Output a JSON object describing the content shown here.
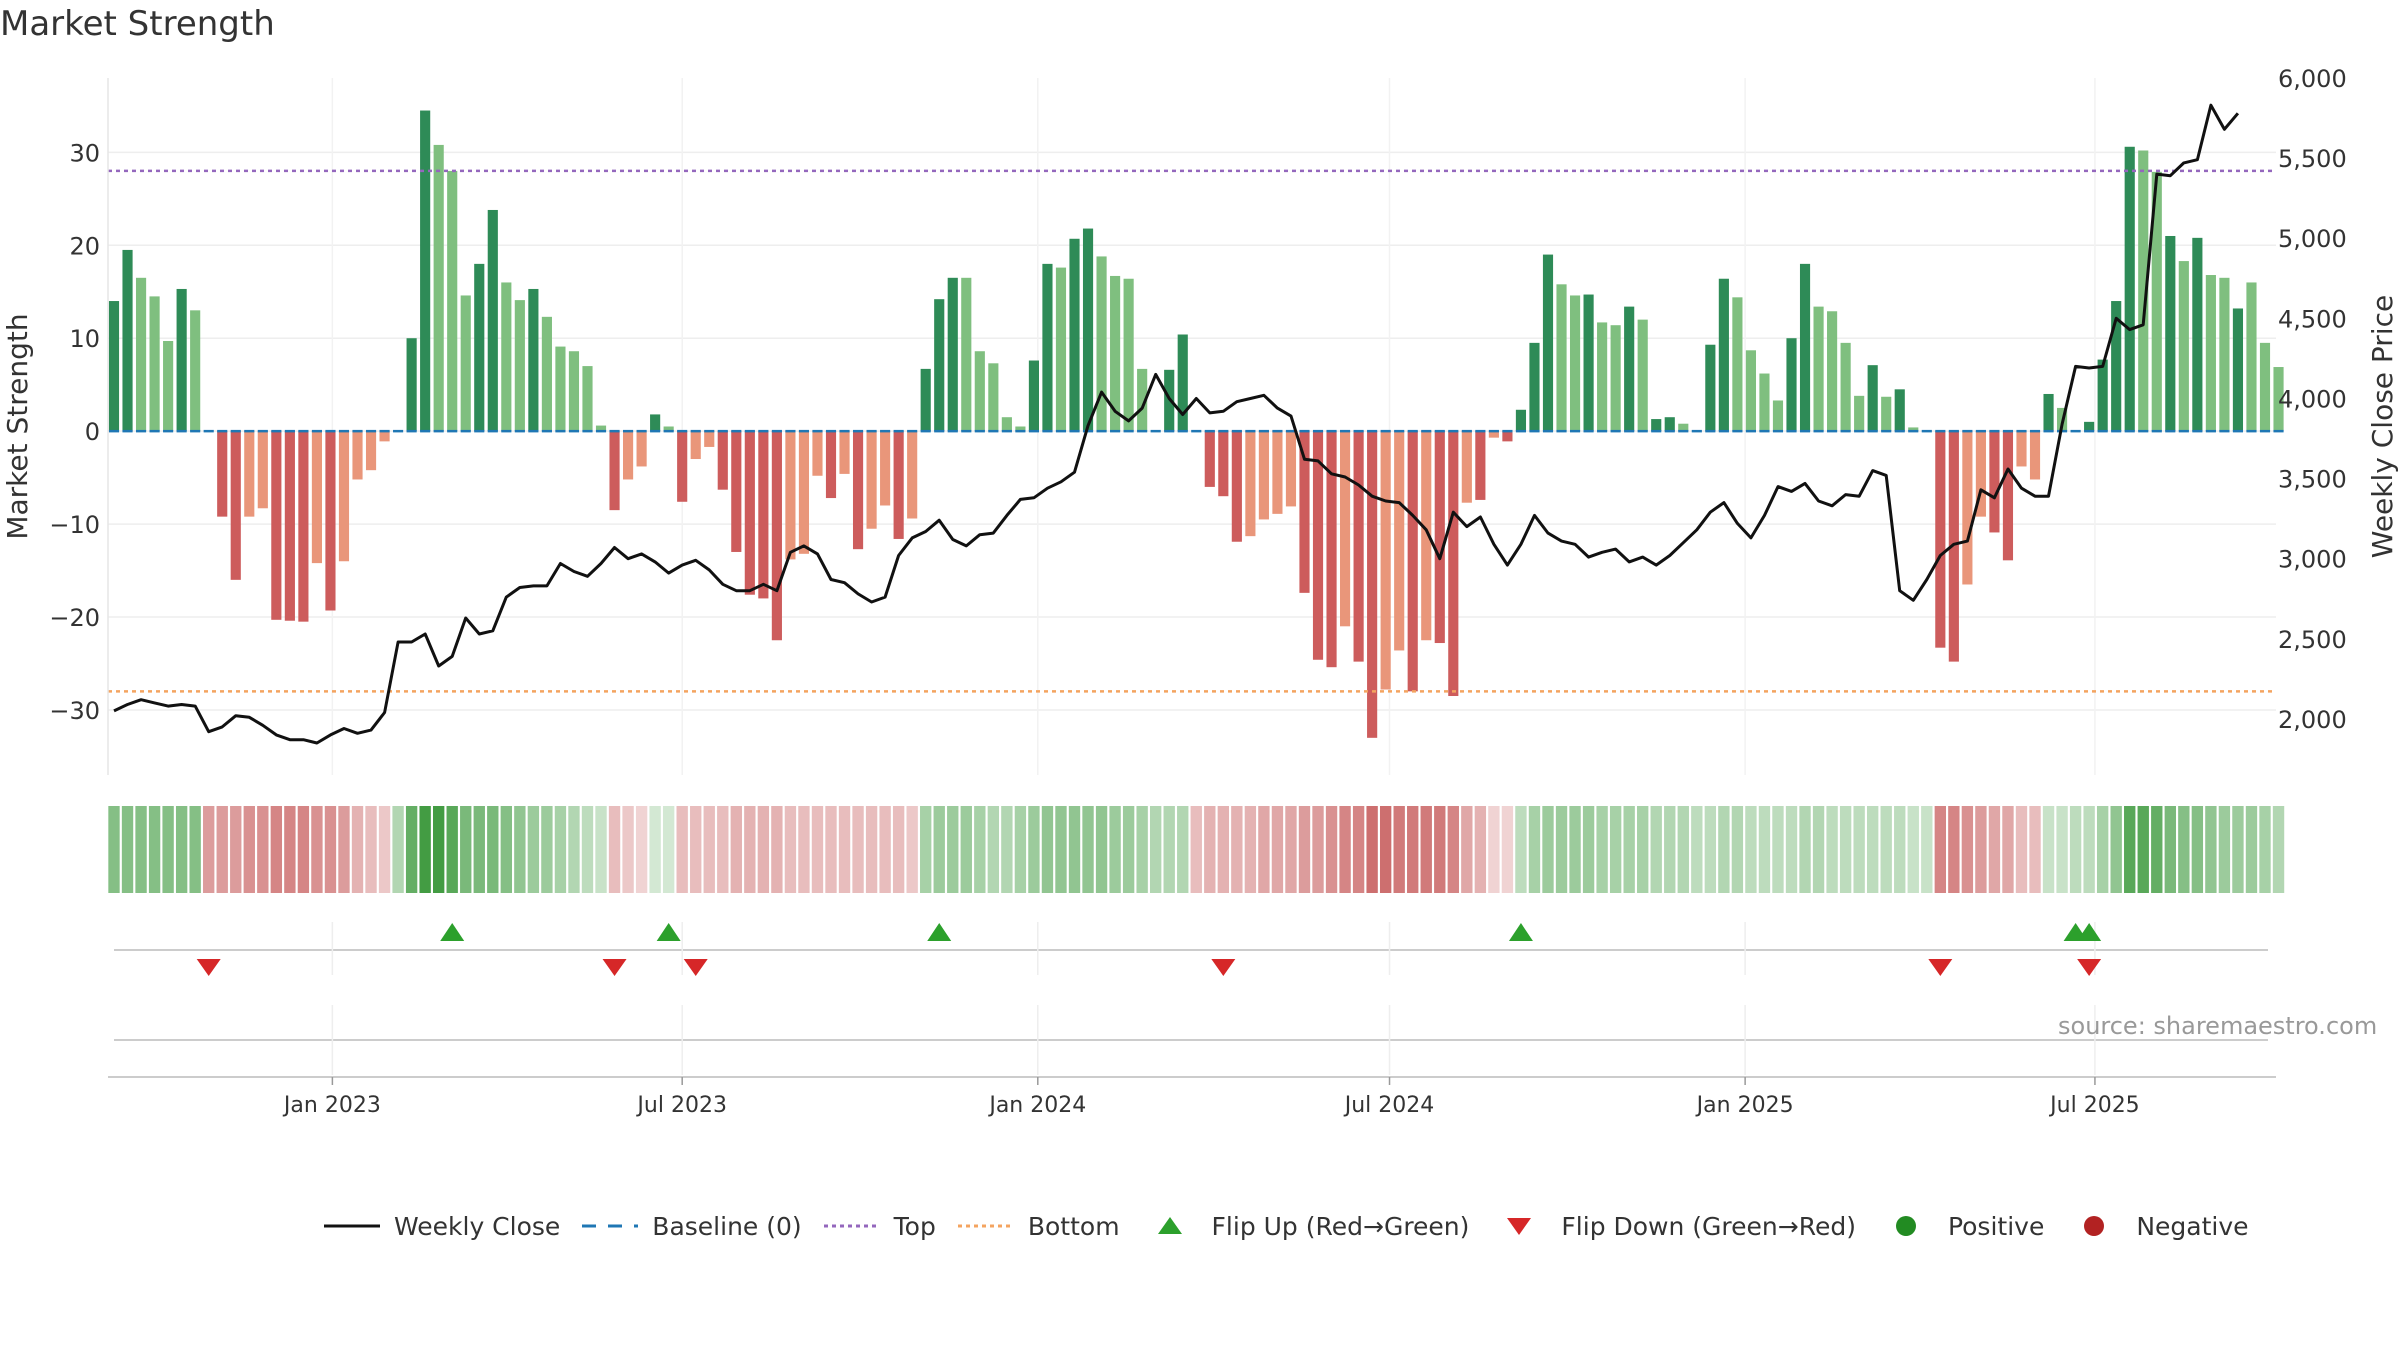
{
  "title": "Market Strength",
  "source": "source: sharemaestro.com",
  "colors": {
    "green_dark": "#2e8b57",
    "green_light": "#7fbf7f",
    "red_dark": "#cd5c5c",
    "red_light": "#e9967a",
    "close_line": "#111111",
    "baseline": "#1f77b4",
    "top": "#9467bd",
    "bottom": "#f4a460",
    "flip_up": "#2ca02c",
    "flip_down": "#d62728",
    "positive": "#228b22",
    "negative": "#b22222"
  },
  "legend": [
    {
      "label": "Weekly Close",
      "icon": "solid-line"
    },
    {
      "label": "Baseline (0)",
      "icon": "dashed-line"
    },
    {
      "label": "Top",
      "icon": "dotted-line"
    },
    {
      "label": "Bottom",
      "icon": "dotted-line"
    },
    {
      "label": "Flip Up (Red→Green)",
      "icon": "triangle-up"
    },
    {
      "label": "Flip Down (Green→Red)",
      "icon": "triangle-down"
    },
    {
      "label": "Positive",
      "icon": "circle"
    },
    {
      "label": "Negative",
      "icon": "circle"
    }
  ],
  "chart_data": {
    "type": "bar",
    "ylabel": "Market Strength",
    "y2label": "Weekly Close Price",
    "ylim": [
      -37,
      38
    ],
    "y2lim": [
      1650,
      6000
    ],
    "yticks": [
      -30,
      -20,
      -10,
      0,
      10,
      20,
      30
    ],
    "y2ticks": [
      "2,000",
      "2,500",
      "3,000",
      "3,500",
      "4,000",
      "4,500",
      "5,000",
      "5,500",
      "6,000"
    ],
    "y2tick_values": [
      2000,
      2500,
      3000,
      3500,
      4000,
      4500,
      5000,
      5500,
      6000
    ],
    "xticks": [
      "Jan 2023",
      "Jul 2023",
      "Jan 2024",
      "Jul 2024",
      "Jan 2025",
      "Jul 2025"
    ],
    "xtick_dates": [
      "2023-01-01",
      "2023-07-01",
      "2024-01-01",
      "2024-07-01",
      "2025-01-01",
      "2025-07-01"
    ],
    "start_date": "2022-09-10",
    "x_end_date": "2025-09-27",
    "top_level": 28,
    "bottom_level": -28,
    "baseline": 0,
    "grid": true,
    "legend_position": "bottom",
    "strength": [
      14,
      19.5,
      16.5,
      14.5,
      9.7,
      15.3,
      13,
      0,
      -9.2,
      -16,
      -9.2,
      -8.3,
      -20.3,
      -20.4,
      -20.5,
      -14.2,
      -19.3,
      -14,
      -5.2,
      -4.2,
      -1.1,
      0,
      10,
      34.5,
      30.8,
      28,
      14.6,
      18,
      23.8,
      16,
      14.1,
      15.3,
      12.3,
      9.1,
      8.6,
      7,
      0.6,
      -8.5,
      -5.2,
      -3.8,
      1.8,
      0.5,
      -7.6,
      -3,
      -1.7,
      -6.3,
      -13,
      -17.6,
      -18,
      -22.5,
      -13.8,
      -13.2,
      -4.8,
      -7.2,
      -4.6,
      -12.7,
      -10.5,
      -8,
      -11.6,
      -9.4,
      6.7,
      14.2,
      16.5,
      16.5,
      8.6,
      7.3,
      1.5,
      0.5,
      7.6,
      18,
      17.6,
      20.7,
      21.8,
      18.8,
      16.7,
      16.4,
      6.7,
      0,
      6.6,
      10.4,
      0,
      -6,
      -7,
      -11.9,
      -11.3,
      -9.5,
      -8.9,
      -8.1,
      -17.4,
      -24.6,
      -25.4,
      -21,
      -24.8,
      -33,
      -27.8,
      -23.6,
      -28,
      -22.5,
      -22.8,
      -28.5,
      -7.7,
      -7.4,
      -0.7,
      -1.1,
      2.3,
      9.5,
      19,
      15.8,
      14.6,
      14.7,
      11.7,
      11.4,
      13.4,
      12,
      1.3,
      1.5,
      0.8,
      0,
      9.3,
      16.4,
      14.4,
      8.7,
      6.2,
      3.3,
      10,
      18,
      13.4,
      12.9,
      9.5,
      3.8,
      7.1,
      3.7,
      4.5,
      0.4,
      0,
      -23.3,
      -24.8,
      -16.5,
      -9.2,
      -10.9,
      -13.9,
      -3.8,
      -5.2,
      4,
      2.5,
      0,
      1,
      7.7,
      14,
      30.6,
      30.2,
      27.9,
      21,
      18.3,
      20.8,
      16.8,
      16.5,
      13.2,
      16,
      9.5,
      6.9
    ],
    "strength_shade": [
      "d",
      "d",
      "l",
      "l",
      "l",
      "d",
      "l",
      "d",
      "d",
      "d",
      "l",
      "l",
      "d",
      "d",
      "d",
      "l",
      "d",
      "l",
      "l",
      "l",
      "l",
      "d",
      "d",
      "d",
      "l",
      "l",
      "l",
      "d",
      "d",
      "l",
      "l",
      "d",
      "l",
      "l",
      "l",
      "l",
      "l",
      "d",
      "l",
      "l",
      "d",
      "l",
      "d",
      "l",
      "l",
      "d",
      "d",
      "d",
      "d",
      "d",
      "l",
      "l",
      "l",
      "d",
      "l",
      "d",
      "l",
      "l",
      "d",
      "l",
      "d",
      "d",
      "d",
      "l",
      "l",
      "l",
      "l",
      "l",
      "d",
      "d",
      "l",
      "d",
      "d",
      "l",
      "l",
      "l",
      "l",
      "d",
      "d",
      "d",
      "d",
      "d",
      "d",
      "d",
      "l",
      "l",
      "l",
      "l",
      "d",
      "d",
      "d",
      "l",
      "d",
      "d",
      "l",
      "l",
      "d",
      "l",
      "d",
      "d",
      "l",
      "d",
      "l",
      "d",
      "d",
      "d",
      "d",
      "l",
      "l",
      "d",
      "l",
      "l",
      "d",
      "l",
      "d",
      "d",
      "l",
      "d",
      "d",
      "d",
      "l",
      "l",
      "l",
      "l",
      "d",
      "d",
      "l",
      "l",
      "l",
      "l",
      "d",
      "l",
      "d",
      "l",
      "d",
      "d",
      "d",
      "l",
      "l",
      "d",
      "d",
      "l",
      "l",
      "d",
      "l",
      "d",
      "d",
      "d",
      "d",
      "d",
      "l",
      "l",
      "d",
      "l",
      "d",
      "l",
      "l",
      "d",
      "l",
      "l",
      "l",
      "l",
      "l"
    ],
    "weekly_close": [
      2050,
      2090,
      2120,
      2100,
      2080,
      2090,
      2080,
      1920,
      1950,
      2020,
      2010,
      1960,
      1900,
      1870,
      1870,
      1850,
      1900,
      1940,
      1910,
      1930,
      2040,
      2480,
      2480,
      2530,
      2330,
      2390,
      2630,
      2530,
      2550,
      2760,
      2820,
      2830,
      2830,
      2970,
      2920,
      2890,
      2970,
      3070,
      3000,
      3030,
      2980,
      2910,
      2960,
      2990,
      2930,
      2840,
      2800,
      2800,
      2840,
      2800,
      3040,
      3080,
      3030,
      2870,
      2850,
      2780,
      2730,
      2760,
      3020,
      3130,
      3170,
      3240,
      3120,
      3080,
      3150,
      3160,
      3270,
      3370,
      3380,
      3440,
      3480,
      3540,
      3830,
      4040,
      3920,
      3860,
      3940,
      4150,
      4000,
      3900,
      4000,
      3910,
      3920,
      3980,
      4000,
      4020,
      3940,
      3890,
      3620,
      3610,
      3530,
      3510,
      3460,
      3390,
      3360,
      3350,
      3270,
      3180,
      3000,
      3290,
      3200,
      3260,
      3090,
      2960,
      3090,
      3270,
      3160,
      3110,
      3090,
      3010,
      3040,
      3060,
      2980,
      3010,
      2960,
      3020,
      3100,
      3180,
      3290,
      3350,
      3220,
      3130,
      3270,
      3450,
      3420,
      3470,
      3360,
      3330,
      3400,
      3390,
      3550,
      3520,
      2800,
      2740,
      2870,
      3020,
      3090,
      3110,
      3430,
      3380,
      3560,
      3440,
      3390,
      3390,
      3840,
      4200,
      4190,
      4200,
      4500,
      4430,
      4460,
      5400,
      5390,
      5470,
      5490,
      5830,
      5680,
      5780
    ],
    "regime_intensity": [
      0.55,
      0.55,
      0.55,
      0.55,
      0.55,
      0.55,
      0.55,
      -0.45,
      -0.45,
      -0.45,
      -0.5,
      -0.5,
      -0.55,
      -0.55,
      -0.55,
      -0.5,
      -0.5,
      -0.45,
      -0.35,
      -0.3,
      -0.25,
      0.35,
      0.7,
      0.85,
      0.85,
      0.75,
      0.6,
      0.6,
      0.6,
      0.55,
      0.5,
      0.45,
      0.45,
      0.4,
      0.35,
      0.3,
      0.25,
      -0.3,
      -0.25,
      -0.2,
      0.2,
      0.2,
      -0.3,
      -0.3,
      -0.3,
      -0.3,
      -0.35,
      -0.35,
      -0.35,
      -0.35,
      -0.3,
      -0.3,
      -0.3,
      -0.3,
      -0.3,
      -0.3,
      -0.3,
      -0.3,
      -0.3,
      -0.25,
      0.4,
      0.45,
      0.45,
      0.45,
      0.4,
      0.35,
      0.35,
      0.4,
      0.45,
      0.5,
      0.5,
      0.5,
      0.5,
      0.5,
      0.45,
      0.45,
      0.4,
      0.35,
      0.35,
      0.35,
      -0.3,
      -0.35,
      -0.35,
      -0.35,
      -0.35,
      -0.4,
      -0.4,
      -0.4,
      -0.45,
      -0.45,
      -0.5,
      -0.55,
      -0.55,
      -0.65,
      -0.65,
      -0.6,
      -0.6,
      -0.6,
      -0.6,
      -0.55,
      -0.4,
      -0.35,
      -0.2,
      -0.2,
      0.3,
      0.4,
      0.45,
      0.45,
      0.45,
      0.45,
      0.4,
      0.4,
      0.4,
      0.4,
      0.35,
      0.35,
      0.35,
      0.3,
      0.3,
      0.35,
      0.35,
      0.3,
      0.3,
      0.3,
      0.3,
      0.35,
      0.35,
      0.3,
      0.3,
      0.3,
      0.3,
      0.3,
      0.3,
      0.25,
      0.25,
      -0.55,
      -0.55,
      -0.5,
      -0.45,
      -0.4,
      -0.4,
      -0.3,
      -0.3,
      0.25,
      0.25,
      0.3,
      0.3,
      0.4,
      0.5,
      0.75,
      0.75,
      0.7,
      0.6,
      0.55,
      0.55,
      0.5,
      0.45,
      0.45,
      0.45,
      0.4,
      0.35
    ],
    "flip_up_dates": [
      "2023-03-04",
      "2023-06-24",
      "2023-11-11",
      "2024-09-07",
      "2025-06-21",
      "2025-06-28"
    ],
    "flip_down_dates": [
      "2022-10-29",
      "2023-05-27",
      "2023-07-08",
      "2024-04-06",
      "2025-04-12",
      "2025-06-28"
    ]
  }
}
